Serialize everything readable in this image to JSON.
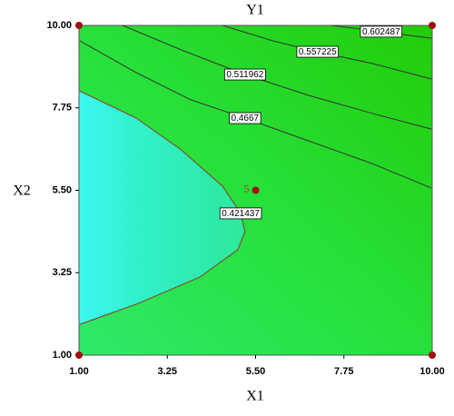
{
  "chart_data": {
    "type": "contour",
    "title": "Y1",
    "x_label": "X1",
    "y_label": "X2",
    "xlim": [
      1,
      10
    ],
    "ylim": [
      1,
      10
    ],
    "xticks": [
      {
        "value": 1,
        "label": "1.00"
      },
      {
        "value": 3.25,
        "label": "3.25"
      },
      {
        "value": 5.5,
        "label": "5.50"
      },
      {
        "value": 7.75,
        "label": "7.75"
      },
      {
        "value": 10,
        "label": "10.00"
      }
    ],
    "yticks": [
      {
        "value": 1,
        "label": "1.00"
      },
      {
        "value": 3.25,
        "label": "3.25"
      },
      {
        "value": 5.5,
        "label": "5.50"
      },
      {
        "value": 7.75,
        "label": "7.75"
      },
      {
        "value": 10,
        "label": "10.00"
      }
    ],
    "contours": [
      {
        "level": 0.421437,
        "x": [
          1.02,
          2.46,
          4.08,
          5.05,
          5.23,
          5.12,
          4.66,
          3.61,
          2.46,
          1.02
        ],
        "y": [
          1.84,
          2.39,
          3.13,
          3.88,
          4.37,
          4.87,
          5.61,
          6.6,
          7.47,
          8.21
        ]
      },
      {
        "level": 0.4667,
        "x": [
          1.02,
          2.46,
          3.85,
          5.23,
          6.85,
          8.47,
          9.98
        ],
        "y": [
          9.58,
          8.71,
          7.97,
          7.47,
          6.85,
          6.23,
          5.56
        ]
      },
      {
        "level": 0.511962,
        "x": [
          2.11,
          3.61,
          5.23,
          6.85,
          8.47,
          9.98
        ],
        "y": [
          10,
          9.33,
          8.66,
          8.09,
          7.6,
          7.17
        ]
      },
      {
        "level": 0.557225,
        "x": [
          4.66,
          5.93,
          7.08,
          8.47,
          9.98
        ],
        "y": [
          10,
          9.58,
          9.28,
          8.96,
          8.54
        ]
      },
      {
        "level": 0.602487,
        "x": [
          7.43,
          8.7,
          9.98
        ],
        "y": [
          10,
          9.83,
          9.65
        ]
      }
    ],
    "design_points": {
      "x": [
        1,
        1,
        10,
        10
      ],
      "y": [
        1,
        10,
        1,
        10
      ]
    },
    "center_point": {
      "x": 5.5,
      "y": 5.5,
      "count": 5
    }
  }
}
